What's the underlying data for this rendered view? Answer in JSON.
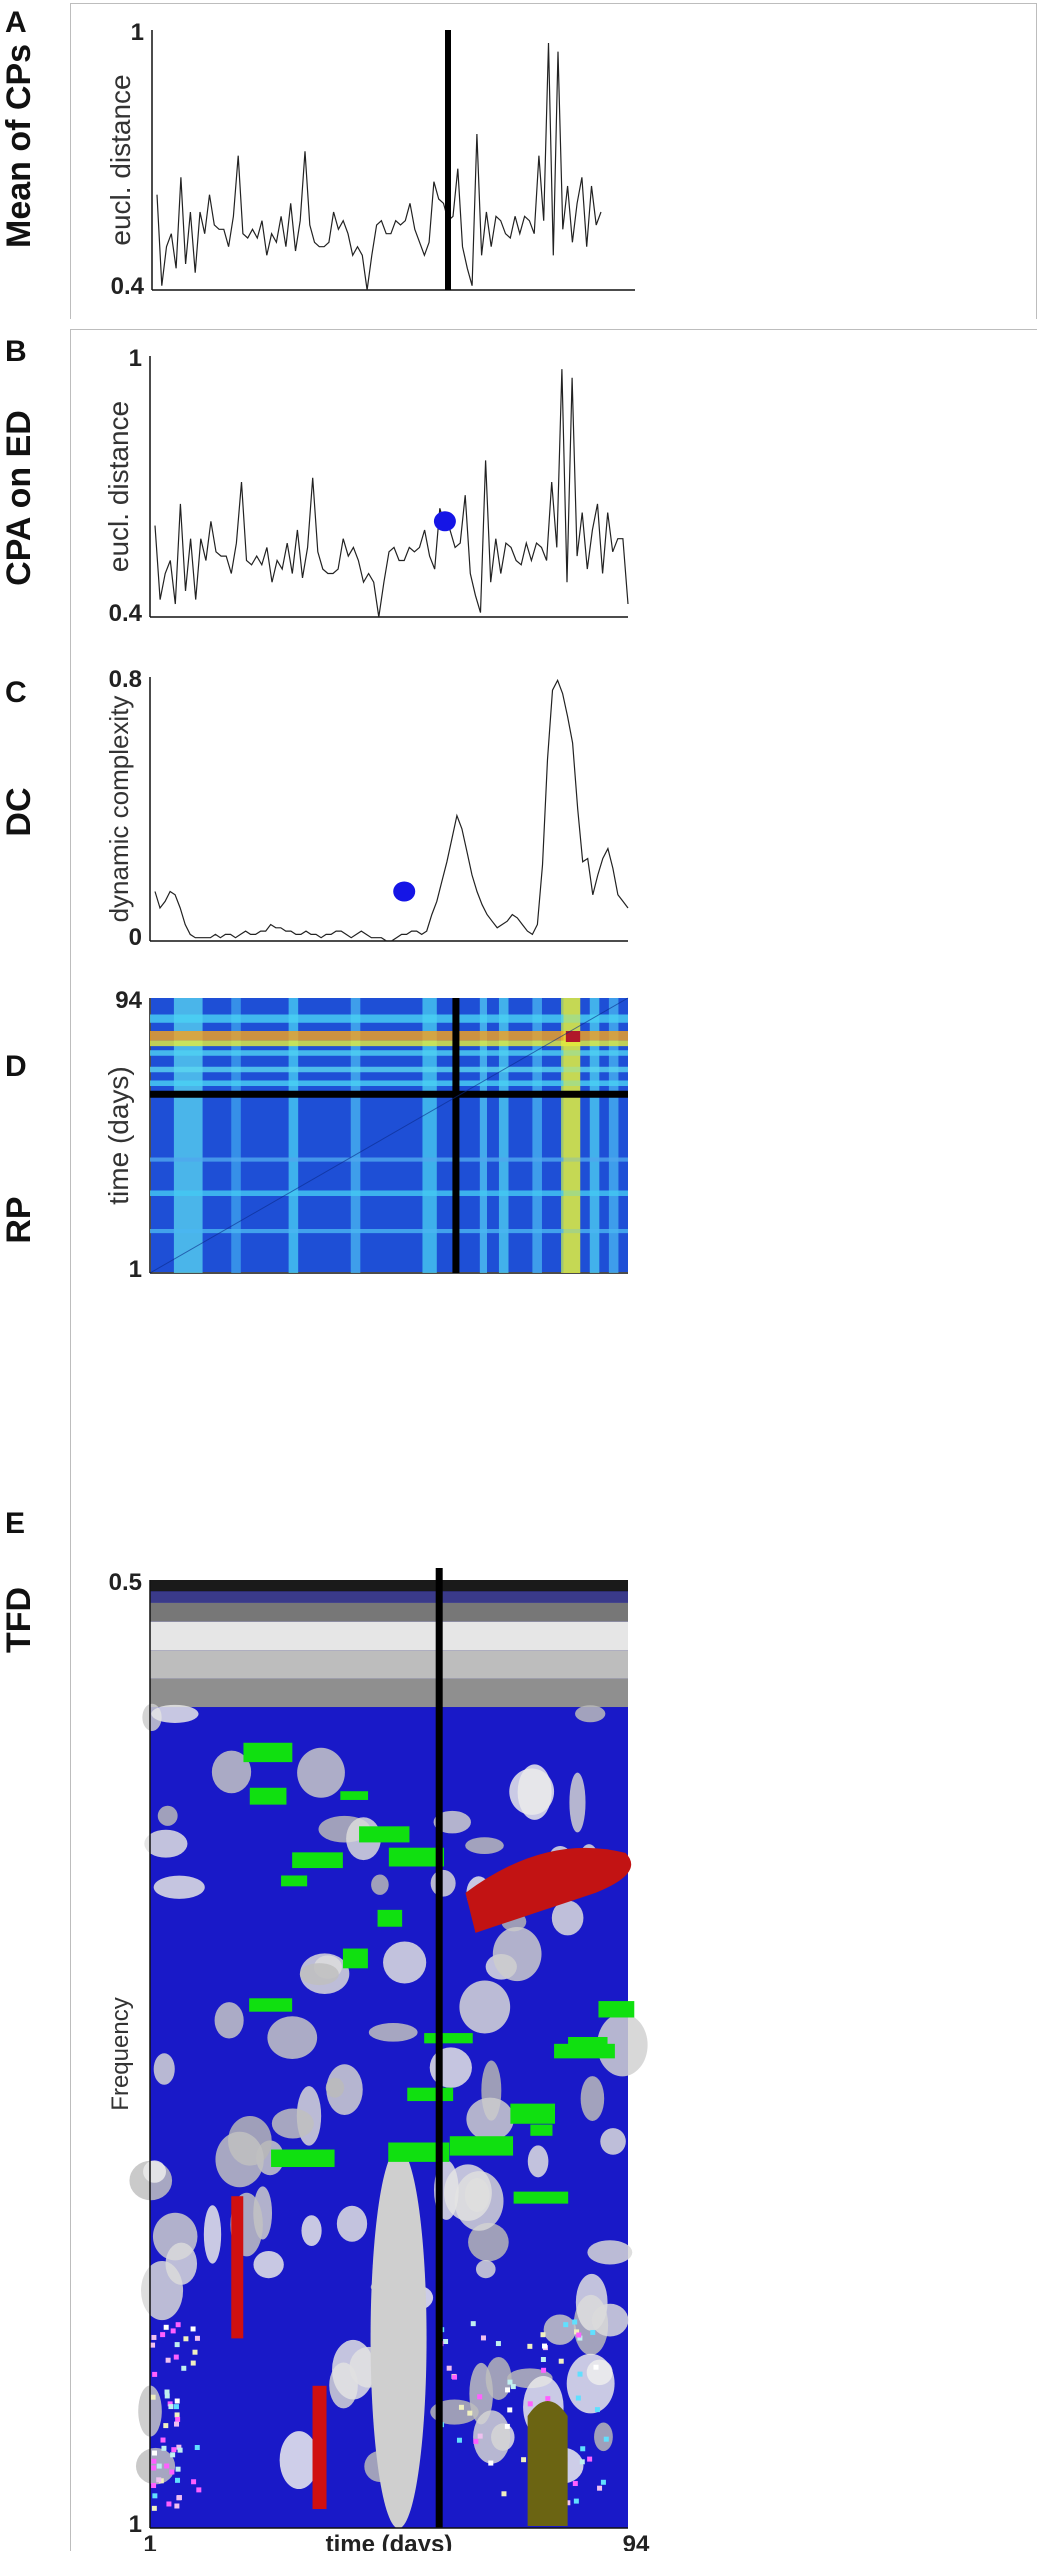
{
  "panels": [
    {
      "letter": "A",
      "row_label": "Mean of CPs"
    },
    {
      "letter": "B",
      "row_label": "CPA on ED"
    },
    {
      "letter": "C",
      "row_label": "DC"
    },
    {
      "letter": "D",
      "row_label": "RP"
    },
    {
      "letter": "E",
      "row_label": "TFD"
    }
  ],
  "chart_data": [
    {
      "type": "line",
      "ylabel": "eucl. distance",
      "ylim": [
        0.4,
        1
      ],
      "yticks": [
        "1",
        "0.4"
      ],
      "xlim": [
        1,
        94
      ],
      "series": [
        {
          "values": [
            0.62,
            0.41,
            0.5,
            0.53,
            0.45,
            0.66,
            0.46,
            0.58,
            0.44,
            0.58,
            0.53,
            0.62,
            0.55,
            0.54,
            0.54,
            0.5,
            0.57,
            0.71,
            0.53,
            0.52,
            0.54,
            0.52,
            0.56,
            0.48,
            0.53,
            0.51,
            0.57,
            0.5,
            0.6,
            0.49,
            0.56,
            0.72,
            0.55,
            0.51,
            0.5,
            0.5,
            0.51,
            0.58,
            0.54,
            0.56,
            0.53,
            0.48,
            0.5,
            0.48,
            0.4,
            0.48,
            0.55,
            0.56,
            0.53,
            0.53,
            0.56,
            0.55,
            0.56,
            0.6,
            0.54,
            0.51,
            0.48,
            0.51,
            0.65,
            0.61,
            0.6,
            0.56,
            0.57,
            0.68,
            0.5,
            0.45,
            0.41,
            0.76,
            0.48,
            0.58,
            0.5,
            0.57,
            0.56,
            0.53,
            0.52,
            0.57,
            0.53,
            0.57,
            0.56,
            0.53,
            0.71,
            0.56,
            0.97,
            0.48,
            0.95,
            0.54,
            0.64,
            0.51,
            0.6,
            0.66,
            0.5,
            0.64,
            0.55,
            0.58
          ]
        }
      ],
      "markers": [
        {
          "type": "vertical_line",
          "x": 60
        }
      ]
    },
    {
      "type": "line",
      "ylabel": "eucl. distance",
      "ylim": [
        0.4,
        1
      ],
      "yticks": [
        "1",
        "0.4"
      ],
      "xlim": [
        1,
        94
      ],
      "series": [
        {
          "values": [
            0.61,
            0.44,
            0.5,
            0.53,
            0.43,
            0.66,
            0.46,
            0.58,
            0.44,
            0.58,
            0.53,
            0.62,
            0.55,
            0.54,
            0.54,
            0.5,
            0.57,
            0.71,
            0.53,
            0.52,
            0.54,
            0.52,
            0.56,
            0.48,
            0.53,
            0.51,
            0.57,
            0.5,
            0.6,
            0.49,
            0.56,
            0.72,
            0.55,
            0.51,
            0.5,
            0.5,
            0.51,
            0.58,
            0.54,
            0.56,
            0.53,
            0.48,
            0.5,
            0.48,
            0.4,
            0.48,
            0.55,
            0.56,
            0.53,
            0.53,
            0.56,
            0.55,
            0.56,
            0.6,
            0.54,
            0.51,
            0.65,
            0.61,
            0.6,
            0.56,
            0.57,
            0.68,
            0.5,
            0.45,
            0.41,
            0.76,
            0.48,
            0.58,
            0.5,
            0.57,
            0.56,
            0.53,
            0.52,
            0.57,
            0.53,
            0.57,
            0.56,
            0.53,
            0.71,
            0.56,
            0.97,
            0.48,
            0.95,
            0.54,
            0.64,
            0.51,
            0.6,
            0.66,
            0.5,
            0.64,
            0.55,
            0.58,
            0.58,
            0.43
          ]
        }
      ],
      "markers": [
        {
          "type": "point",
          "x": 58,
          "y": 0.62,
          "color": "#1515e6"
        }
      ]
    },
    {
      "type": "line",
      "ylabel": "dynamic complexity",
      "ylim": [
        0,
        0.8
      ],
      "yticks": [
        "0.8",
        "0"
      ],
      "xlim": [
        1,
        94
      ],
      "series": [
        {
          "values": [
            0.15,
            0.1,
            0.12,
            0.15,
            0.14,
            0.1,
            0.05,
            0.02,
            0.01,
            0.01,
            0.01,
            0.01,
            0.02,
            0.01,
            0.02,
            0.02,
            0.01,
            0.02,
            0.03,
            0.02,
            0.02,
            0.03,
            0.03,
            0.05,
            0.04,
            0.04,
            0.03,
            0.03,
            0.02,
            0.02,
            0.03,
            0.02,
            0.02,
            0.01,
            0.02,
            0.02,
            0.03,
            0.03,
            0.02,
            0.01,
            0.02,
            0.03,
            0.02,
            0.01,
            0.01,
            0.01,
            0.0,
            0.0,
            0.01,
            0.02,
            0.02,
            0.03,
            0.03,
            0.02,
            0.03,
            0.08,
            0.12,
            0.18,
            0.24,
            0.31,
            0.38,
            0.34,
            0.27,
            0.2,
            0.15,
            0.11,
            0.08,
            0.06,
            0.04,
            0.05,
            0.06,
            0.08,
            0.07,
            0.05,
            0.03,
            0.02,
            0.05,
            0.23,
            0.55,
            0.76,
            0.79,
            0.75,
            0.68,
            0.6,
            0.4,
            0.24,
            0.25,
            0.14,
            0.2,
            0.25,
            0.28,
            0.22,
            0.14,
            0.12,
            0.1
          ]
        }
      ],
      "markers": [
        {
          "type": "point",
          "x": 50,
          "y": 0.15,
          "color": "#1515e6"
        }
      ]
    },
    {
      "type": "heatmap",
      "ylabel": "time (days)",
      "yticks": [
        "94",
        "1"
      ],
      "xlim": [
        1,
        94
      ],
      "colormap": "jet",
      "markers": [
        {
          "type": "vertical_line",
          "x": 60
        },
        {
          "type": "horizontal_line",
          "y": 60
        }
      ]
    },
    {
      "type": "heatmap",
      "ylabel": "Frequency",
      "xlabel": "time (days)",
      "yticks": [
        "0.5",
        "1"
      ],
      "xticks": [
        "1",
        "94"
      ],
      "colormap": "categorical",
      "markers": [
        {
          "type": "vertical_line",
          "x": 57
        }
      ]
    }
  ]
}
